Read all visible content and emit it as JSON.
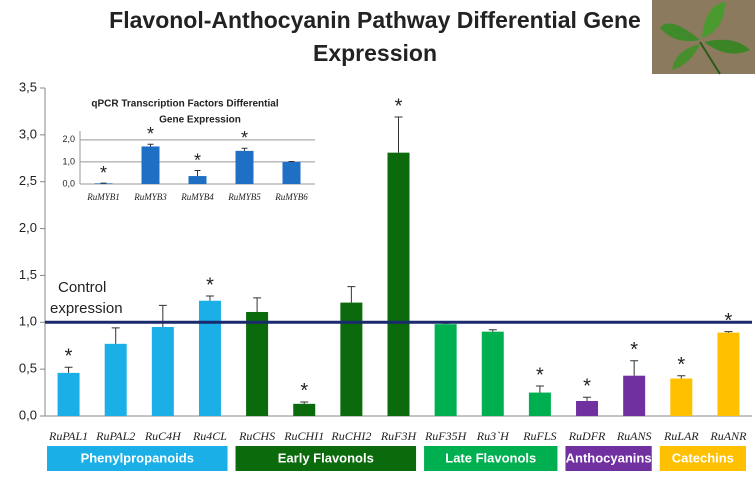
{
  "chart_data": [
    {
      "type": "bar",
      "title": [
        "Flavonol-Anthocyanin Pathway Differential Gene",
        "Expression"
      ],
      "ylim": [
        0,
        3.5
      ],
      "yticks": [
        {
          "value": 0,
          "label": "0,0"
        },
        {
          "value": 0.5,
          "label": "0,5"
        },
        {
          "value": 1,
          "label": "1,0"
        },
        {
          "value": 1.5,
          "label": "1,5"
        },
        {
          "value": 2,
          "label": "2,0"
        },
        {
          "value": 2.5,
          "label": "2,5"
        },
        {
          "value": 3,
          "label": "3,0"
        },
        {
          "value": 3.5,
          "label": "3,5"
        }
      ],
      "control": 1,
      "control_label": [
        "Control",
        "expression"
      ],
      "series": [
        {
          "name": "Phenylpropanoids",
          "color": "#1aafe6",
          "categories": [
            "RuPAL1",
            "RuPAL2",
            "RuC4H",
            "Ru4CL"
          ],
          "values": [
            0.46,
            0.77,
            0.95,
            1.23
          ],
          "errors": [
            0.06,
            0.17,
            0.23,
            0.05
          ],
          "labels": [
            "*",
            null,
            null,
            "*"
          ]
        },
        {
          "name": "Early Flavonols",
          "color": "#0b6a0b",
          "categories": [
            "RuCHS",
            "RuCHI1",
            "RuCHI2",
            "RuF3H"
          ],
          "values": [
            1.11,
            0.13,
            1.21,
            2.81
          ],
          "errors": [
            0.15,
            0.02,
            0.17,
            0.38
          ],
          "labels": [
            null,
            "*",
            null,
            "*"
          ]
        },
        {
          "name": "Late Flavonols",
          "color": "#00b050",
          "categories": [
            "RuF35H",
            "Ru3`H",
            "RuFLS"
          ],
          "values": [
            0.98,
            0.9,
            0.25
          ],
          "errors": [
            0.01,
            0.02,
            0.07
          ],
          "labels": [
            null,
            null,
            "*"
          ]
        },
        {
          "name": "Anthocyanins",
          "color": "#7030a0",
          "categories": [
            "RuDFR",
            "RuANS"
          ],
          "values": [
            0.16,
            0.43
          ],
          "errors": [
            0.04,
            0.16
          ],
          "labels": [
            "*",
            "*"
          ]
        },
        {
          "name": "Catechins",
          "color": "#ffc000",
          "categories": [
            "RuLAR",
            "RuANR"
          ],
          "values": [
            0.4,
            0.89
          ],
          "errors": [
            0.03,
            0.01
          ],
          "labels": [
            "*",
            "*"
          ]
        }
      ]
    },
    {
      "type": "bar",
      "title": [
        "qPCR Transcription Factors Differential",
        "Gene Expression"
      ],
      "categories": [
        "RuMYB1",
        "RuMYB3",
        "RuMYB4",
        "RuMYB5",
        "RuMYB6"
      ],
      "values": [
        0.03,
        1.7,
        0.36,
        1.5,
        1.0
      ],
      "errors": [
        0.01,
        0.1,
        0.25,
        0.12,
        0.02
      ],
      "labels": [
        "*",
        "*",
        "*",
        "*",
        null
      ],
      "color": "#1f6fc5",
      "ylim": [
        0,
        2.4
      ],
      "yticks": [
        {
          "value": 0,
          "label": "0,0"
        },
        {
          "value": 1,
          "label": "1,0"
        },
        {
          "value": 2,
          "label": "2,0"
        }
      ],
      "grid": true
    }
  ]
}
